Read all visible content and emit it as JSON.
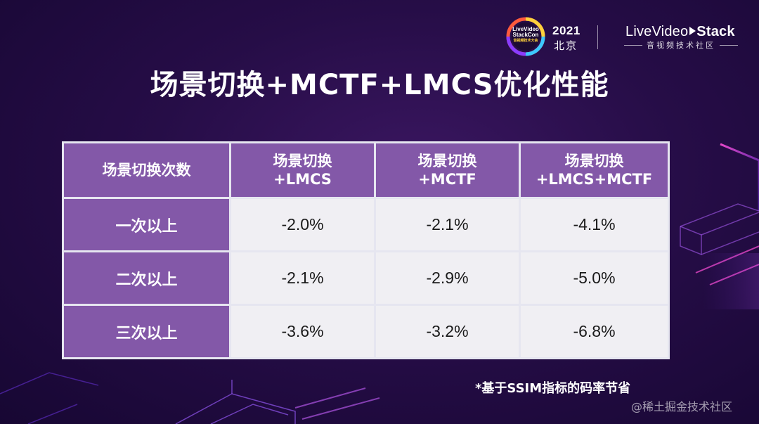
{
  "header": {
    "event_logo_text": [
      "LiveVideo",
      "StackCon",
      "音视频技术大会"
    ],
    "year": "2021",
    "city": "北京",
    "brand_prefix": "Live",
    "brand_middle": "Video",
    "brand_suffix": "Stack",
    "brand_sub": "音视频技术社区"
  },
  "title": "场景切换+MCTF+LMCS优化性能",
  "table": {
    "headers": [
      [
        "场景切换次数"
      ],
      [
        "场景切换",
        "+LMCS"
      ],
      [
        "场景切换",
        "+MCTF"
      ],
      [
        "场景切换",
        "+LMCS+MCTF"
      ]
    ],
    "rows": [
      {
        "label": "一次以上",
        "values": [
          "-2.0%",
          "-2.1%",
          "-4.1%"
        ]
      },
      {
        "label": "二次以上",
        "values": [
          "-2.1%",
          "-2.9%",
          "-5.0%"
        ]
      },
      {
        "label": "三次以上",
        "values": [
          "-3.6%",
          "-3.2%",
          "-6.8%"
        ]
      }
    ]
  },
  "footnote": "*基于SSIM指标的码率节省",
  "watermark": "@稀土掘金技术社区",
  "colors": {
    "header_cell": "#8358a8",
    "data_cell": "#f0eff3",
    "background": "#260d47",
    "accent_pink": "#e040c8"
  }
}
